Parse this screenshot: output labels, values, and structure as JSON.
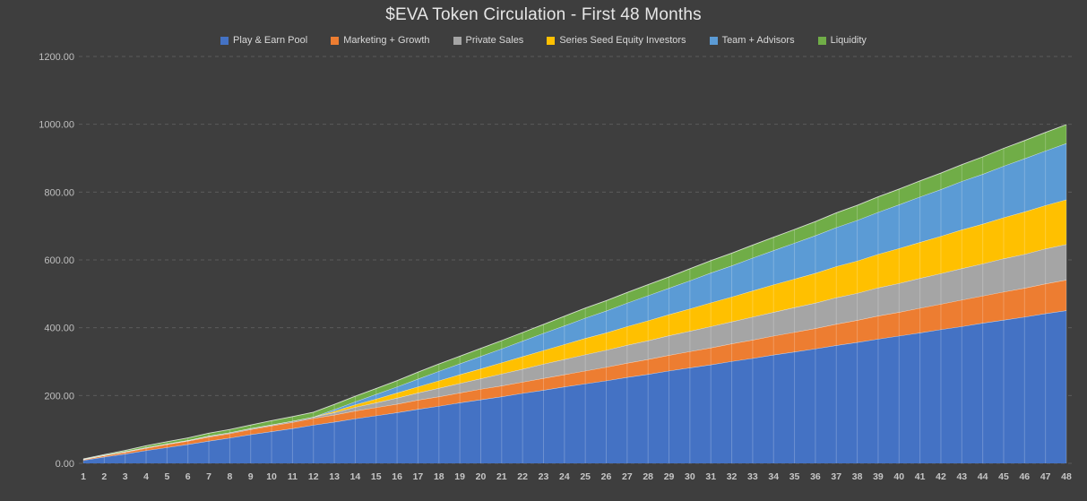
{
  "chart_data": {
    "type": "area",
    "stacked": true,
    "title": "$EVA Token Circulation - First 48 Months",
    "xlabel": "",
    "ylabel": "",
    "x": [
      1,
      2,
      3,
      4,
      5,
      6,
      7,
      8,
      9,
      10,
      11,
      12,
      13,
      14,
      15,
      16,
      17,
      18,
      19,
      20,
      21,
      22,
      23,
      24,
      25,
      26,
      27,
      28,
      29,
      30,
      31,
      32,
      33,
      34,
      35,
      36,
      37,
      38,
      39,
      40,
      41,
      42,
      43,
      44,
      45,
      46,
      47,
      48
    ],
    "ylim": [
      0,
      1200
    ],
    "y_tick_labels": [
      "0.00",
      "200.00",
      "400.00",
      "600.00",
      "800.00",
      "1000.00",
      "1200.00"
    ],
    "y_tick_values": [
      0,
      200,
      400,
      600,
      800,
      1000,
      1200
    ],
    "grid": "horizontal-dashed",
    "legend_position": "top-center",
    "background": "#3E3E3E",
    "drop_lines": true,
    "series": [
      {
        "name": "Play & Earn Pool",
        "color": "#4472C4",
        "values": [
          9,
          19,
          28,
          38,
          47,
          56,
          66,
          75,
          85,
          94,
          103,
          113,
          122,
          132,
          141,
          150,
          160,
          169,
          179,
          188,
          197,
          207,
          216,
          226,
          235,
          244,
          254,
          263,
          273,
          282,
          291,
          301,
          310,
          320,
          329,
          338,
          348,
          357,
          367,
          376,
          385,
          395,
          404,
          414,
          423,
          432,
          442,
          451
        ]
      },
      {
        "name": "Marketing + Growth",
        "color": "#ED7D31",
        "values": [
          2,
          4,
          5,
          7,
          9,
          10,
          12,
          13,
          15,
          17,
          18,
          20,
          21,
          23,
          24,
          25,
          27,
          28,
          29,
          31,
          32,
          33,
          35,
          36,
          38,
          40,
          42,
          44,
          46,
          48,
          50,
          52,
          54,
          56,
          58,
          60,
          63,
          65,
          68,
          70,
          73,
          75,
          78,
          80,
          83,
          85,
          88,
          90
        ]
      },
      {
        "name": "Private Sales",
        "color": "#A5A5A5",
        "values": [
          1,
          1,
          2,
          2,
          2,
          2,
          3,
          3,
          3,
          3,
          4,
          4,
          7,
          11,
          14,
          18,
          21,
          25,
          28,
          31,
          35,
          38,
          42,
          45,
          48,
          50,
          53,
          55,
          58,
          60,
          63,
          65,
          68,
          70,
          73,
          75,
          78,
          80,
          83,
          85,
          88,
          90,
          93,
          95,
          98,
          100,
          103,
          105
        ]
      },
      {
        "name": "Series Seed Equity Investors",
        "color": "#FFC000",
        "values": [
          0,
          0,
          0,
          0,
          0,
          0,
          0,
          0,
          0,
          0,
          0,
          0,
          4,
          7,
          11,
          15,
          18,
          22,
          26,
          29,
          33,
          37,
          40,
          44,
          48,
          51,
          55,
          59,
          62,
          66,
          70,
          73,
          77,
          81,
          84,
          88,
          92,
          95,
          99,
          103,
          106,
          110,
          114,
          117,
          121,
          125,
          128,
          132
        ]
      },
      {
        "name": "Team + Advisors",
        "color": "#5B9BD5",
        "values": [
          0,
          0,
          0,
          0,
          0,
          0,
          0,
          0,
          0,
          0,
          0,
          0,
          5,
          9,
          14,
          18,
          23,
          28,
          32,
          37,
          41,
          46,
          51,
          55,
          60,
          65,
          69,
          74,
          78,
          83,
          88,
          92,
          97,
          101,
          106,
          111,
          115,
          120,
          124,
          129,
          134,
          138,
          143,
          147,
          152,
          157,
          161,
          166
        ]
      },
      {
        "name": "Liquidity",
        "color": "#70AD47",
        "values": [
          1,
          2,
          3,
          5,
          6,
          7,
          8,
          9,
          10,
          12,
          13,
          14,
          15,
          16,
          17,
          18,
          20,
          21,
          22,
          23,
          24,
          25,
          26,
          28,
          29,
          30,
          31,
          32,
          33,
          35,
          36,
          37,
          38,
          39,
          40,
          41,
          43,
          44,
          45,
          46,
          47,
          48,
          49,
          51,
          52,
          53,
          54,
          55
        ]
      }
    ]
  }
}
